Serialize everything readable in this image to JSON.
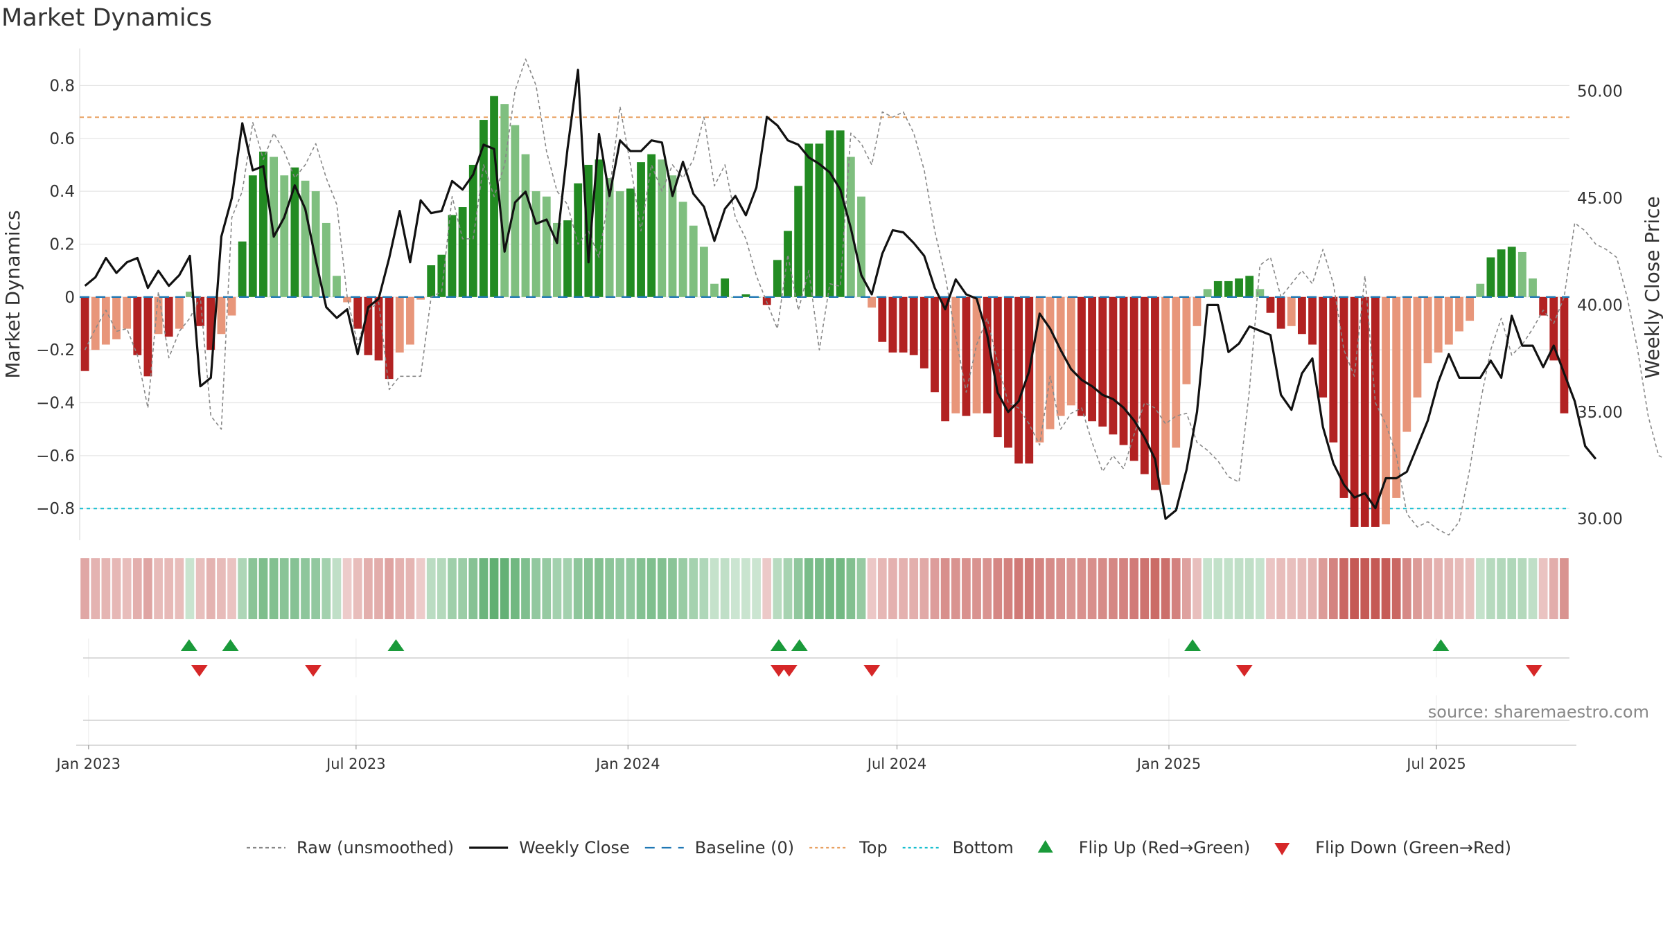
{
  "chart_data": {
    "type": "bar",
    "title": "Market Dynamics",
    "ylabel": "Market Dynamics",
    "y2label": "Weekly Close Price",
    "ylim": [
      -0.92,
      0.94
    ],
    "y2lim": [
      29.0,
      52.0
    ],
    "y_ticks": [
      -0.8,
      -0.6,
      -0.4,
      -0.2,
      0,
      0.2,
      0.4,
      0.6,
      0.8
    ],
    "y_tick_labels": [
      "−0.8",
      "−0.6",
      "−0.4",
      "−0.2",
      "0",
      "0.2",
      "0.4",
      "0.6",
      "0.8"
    ],
    "y2_ticks": [
      30,
      35,
      40,
      45,
      50
    ],
    "y2_tick_labels": [
      "30.00",
      "35.00",
      "40.00",
      "45.00",
      "50.00"
    ],
    "x_start": "2022-12-26",
    "x_end": "2025-09-29",
    "x_ticks": [
      "2023-01-01",
      "2023-07-01",
      "2024-01-01",
      "2024-07-01",
      "2025-01-01",
      "2025-07-01"
    ],
    "x_tick_labels": [
      "Jan 2023",
      "Jul 2023",
      "Jan 2024",
      "Jul 2024",
      "Jan 2025",
      "Jul 2025"
    ],
    "top_level": 0.68,
    "bottom_level": -0.8,
    "series": [
      {
        "name": "Raw (unsmoothed)",
        "type": "line",
        "style": "dashed",
        "color": "#888888",
        "axis": "left",
        "values": [
          -0.2,
          -0.12,
          -0.05,
          -0.13,
          -0.12,
          -0.22,
          -0.42,
          0.02,
          -0.23,
          -0.13,
          -0.08,
          0.0,
          -0.45,
          -0.5,
          0.3,
          0.4,
          0.66,
          0.52,
          0.62,
          0.55,
          0.45,
          0.5,
          0.58,
          0.45,
          0.35,
          0.0,
          -0.18,
          -0.05,
          -0.02,
          -0.35,
          -0.3,
          -0.3,
          -0.3,
          0.0,
          0.02,
          0.38,
          0.22,
          0.22,
          0.5,
          0.38,
          0.5,
          0.78,
          0.9,
          0.8,
          0.55,
          0.4,
          0.35,
          0.2,
          0.25,
          0.15,
          0.4,
          0.72,
          0.5,
          0.25,
          0.5,
          0.4,
          0.5,
          0.45,
          0.52,
          0.68,
          0.42,
          0.5,
          0.3,
          0.22,
          0.08,
          -0.02,
          -0.12,
          0.16,
          -0.05,
          0.1,
          -0.2,
          0.05,
          0.04,
          0.62,
          0.58,
          0.5,
          0.7,
          0.68,
          0.7,
          0.62,
          0.48,
          0.25,
          0.08,
          -0.15,
          -0.36,
          -0.18,
          -0.08,
          -0.25,
          -0.4,
          -0.42,
          -0.48,
          -0.56,
          -0.3,
          -0.5,
          -0.44,
          -0.42,
          -0.55,
          -0.66,
          -0.6,
          -0.65,
          -0.52,
          -0.4,
          -0.42,
          -0.48,
          -0.45,
          -0.44,
          -0.55,
          -0.58,
          -0.62,
          -0.68,
          -0.7,
          -0.35,
          0.12,
          0.15,
          0.0,
          0.05,
          0.1,
          0.05,
          0.18,
          0.05,
          -0.2,
          -0.3,
          0.08,
          -0.4,
          -0.48,
          -0.6,
          -0.82,
          -0.87,
          -0.85,
          -0.88,
          -0.9,
          -0.85,
          -0.65,
          -0.4,
          -0.2,
          -0.08,
          -0.22,
          -0.18,
          -0.12,
          -0.05,
          -0.1,
          0.0,
          0.28,
          0.25,
          0.2,
          0.18,
          0.15,
          0.0,
          -0.2,
          -0.45,
          -0.6,
          -0.62
        ]
      },
      {
        "name": "Weekly Close",
        "type": "line",
        "style": "solid",
        "color": "#111111",
        "axis": "right",
        "values": [
          40.9,
          41.3,
          42.2,
          41.5,
          42.0,
          42.2,
          40.8,
          41.6,
          40.9,
          41.4,
          42.3,
          36.2,
          36.6,
          43.2,
          45.0,
          48.5,
          46.3,
          46.5,
          43.2,
          44.1,
          45.6,
          44.5,
          42.1,
          39.9,
          39.4,
          39.8,
          37.7,
          39.9,
          40.3,
          42.2,
          44.4,
          42.0,
          44.9,
          44.3,
          44.4,
          45.8,
          45.4,
          46.1,
          47.5,
          47.3,
          42.5,
          44.8,
          45.3,
          43.8,
          44.0,
          42.9,
          47.3,
          51.0,
          42.0,
          48.0,
          45.1,
          47.7,
          47.2,
          47.2,
          47.7,
          47.6,
          45.1,
          46.7,
          45.2,
          44.6,
          43.0,
          44.5,
          45.1,
          44.2,
          45.5,
          48.8,
          48.4,
          47.7,
          47.5,
          46.9,
          46.6,
          46.2,
          45.4,
          43.6,
          41.4,
          40.5,
          42.4,
          43.5,
          43.4,
          42.9,
          42.3,
          40.8,
          39.8,
          41.2,
          40.5,
          40.3,
          38.6,
          35.9,
          35.0,
          35.5,
          36.9,
          39.6,
          38.9,
          37.9,
          37.0,
          36.5,
          36.2,
          35.8,
          35.6,
          35.2,
          34.6,
          33.8,
          32.8,
          30.0,
          30.4,
          32.3,
          35.0,
          40.0,
          40.0,
          37.8,
          38.2,
          39.0,
          38.8,
          38.6,
          35.8,
          35.1,
          36.8,
          37.5,
          34.3,
          32.6,
          31.6,
          31.0,
          31.2,
          30.5,
          31.9,
          31.9,
          32.2,
          33.4,
          34.6,
          36.4,
          37.7,
          36.6,
          36.6,
          36.6,
          37.4,
          36.6,
          39.5,
          38.1,
          38.1,
          37.1,
          38.1,
          36.8,
          35.5,
          33.4,
          32.8
        ]
      },
      {
        "name": "Market Dynamics",
        "type": "bar",
        "axis": "left",
        "values": [
          -0.28,
          -0.2,
          -0.18,
          -0.16,
          -0.12,
          -0.22,
          -0.3,
          -0.14,
          -0.15,
          -0.12,
          0.02,
          -0.11,
          -0.2,
          -0.14,
          -0.07,
          0.21,
          0.46,
          0.55,
          0.53,
          0.46,
          0.49,
          0.44,
          0.4,
          0.28,
          0.08,
          -0.02,
          -0.12,
          -0.22,
          -0.24,
          -0.31,
          -0.21,
          -0.18,
          -0.01,
          0.12,
          0.16,
          0.31,
          0.34,
          0.5,
          0.67,
          0.76,
          0.73,
          0.65,
          0.54,
          0.4,
          0.38,
          0.28,
          0.29,
          0.43,
          0.5,
          0.52,
          0.45,
          0.4,
          0.41,
          0.51,
          0.54,
          0.52,
          0.46,
          0.36,
          0.27,
          0.19,
          0.05,
          0.07,
          0.0,
          0.01,
          0.0,
          -0.03,
          0.14,
          0.25,
          0.42,
          0.58,
          0.58,
          0.63,
          0.63,
          0.53,
          0.38,
          -0.04,
          -0.17,
          -0.21,
          -0.21,
          -0.22,
          -0.27,
          -0.36,
          -0.47,
          -0.44,
          -0.45,
          -0.44,
          -0.44,
          -0.53,
          -0.57,
          -0.63,
          -0.63,
          -0.55,
          -0.5,
          -0.45,
          -0.41,
          -0.45,
          -0.47,
          -0.49,
          -0.52,
          -0.56,
          -0.62,
          -0.67,
          -0.73,
          -0.71,
          -0.57,
          -0.33,
          -0.11,
          0.03,
          0.06,
          0.06,
          0.07,
          0.08,
          0.03,
          -0.06,
          -0.12,
          -0.11,
          -0.14,
          -0.18,
          -0.38,
          -0.55,
          -0.76,
          -0.87,
          -0.87,
          -0.87,
          -0.86,
          -0.76,
          -0.51,
          -0.38,
          -0.25,
          -0.21,
          -0.18,
          -0.13,
          -0.09,
          0.05,
          0.15,
          0.18,
          0.19,
          0.17,
          0.07,
          -0.07,
          -0.24,
          -0.44
        ]
      }
    ],
    "flip_up_dates": [
      "2023-03-10",
      "2023-04-07",
      "2023-07-28",
      "2024-04-12",
      "2024-04-26",
      "2025-01-17",
      "2025-07-04"
    ],
    "flip_down_dates": [
      "2023-03-17",
      "2023-06-02",
      "2024-04-12",
      "2024-04-19",
      "2024-06-14",
      "2025-02-21",
      "2025-09-05"
    ],
    "legend": [
      {
        "label": "Raw (unsmoothed)",
        "kind": "dash",
        "color": "#888888"
      },
      {
        "label": "Weekly Close",
        "kind": "solid",
        "color": "#111111"
      },
      {
        "label": "Baseline (0)",
        "kind": "longdash",
        "color": "#1f77b4"
      },
      {
        "label": "Top",
        "kind": "dot",
        "color": "#e8a060"
      },
      {
        "label": "Bottom",
        "kind": "dot",
        "color": "#17becf"
      },
      {
        "label": "Flip Up (Red→Green)",
        "kind": "tri-up",
        "color": "#1a9a3a"
      },
      {
        "label": "Flip Down (Green→Red)",
        "kind": "tri-down",
        "color": "#d62728"
      }
    ],
    "colors": {
      "bar_green_strong": "#228b22",
      "bar_green_light": "#7fbf7f",
      "bar_red_strong": "#b22222",
      "bar_red_light": "#e8967a",
      "top_line": "#e8a060",
      "bottom_line": "#17becf",
      "baseline": "#1f77b4"
    },
    "source": "source: sharemaestro.com"
  }
}
